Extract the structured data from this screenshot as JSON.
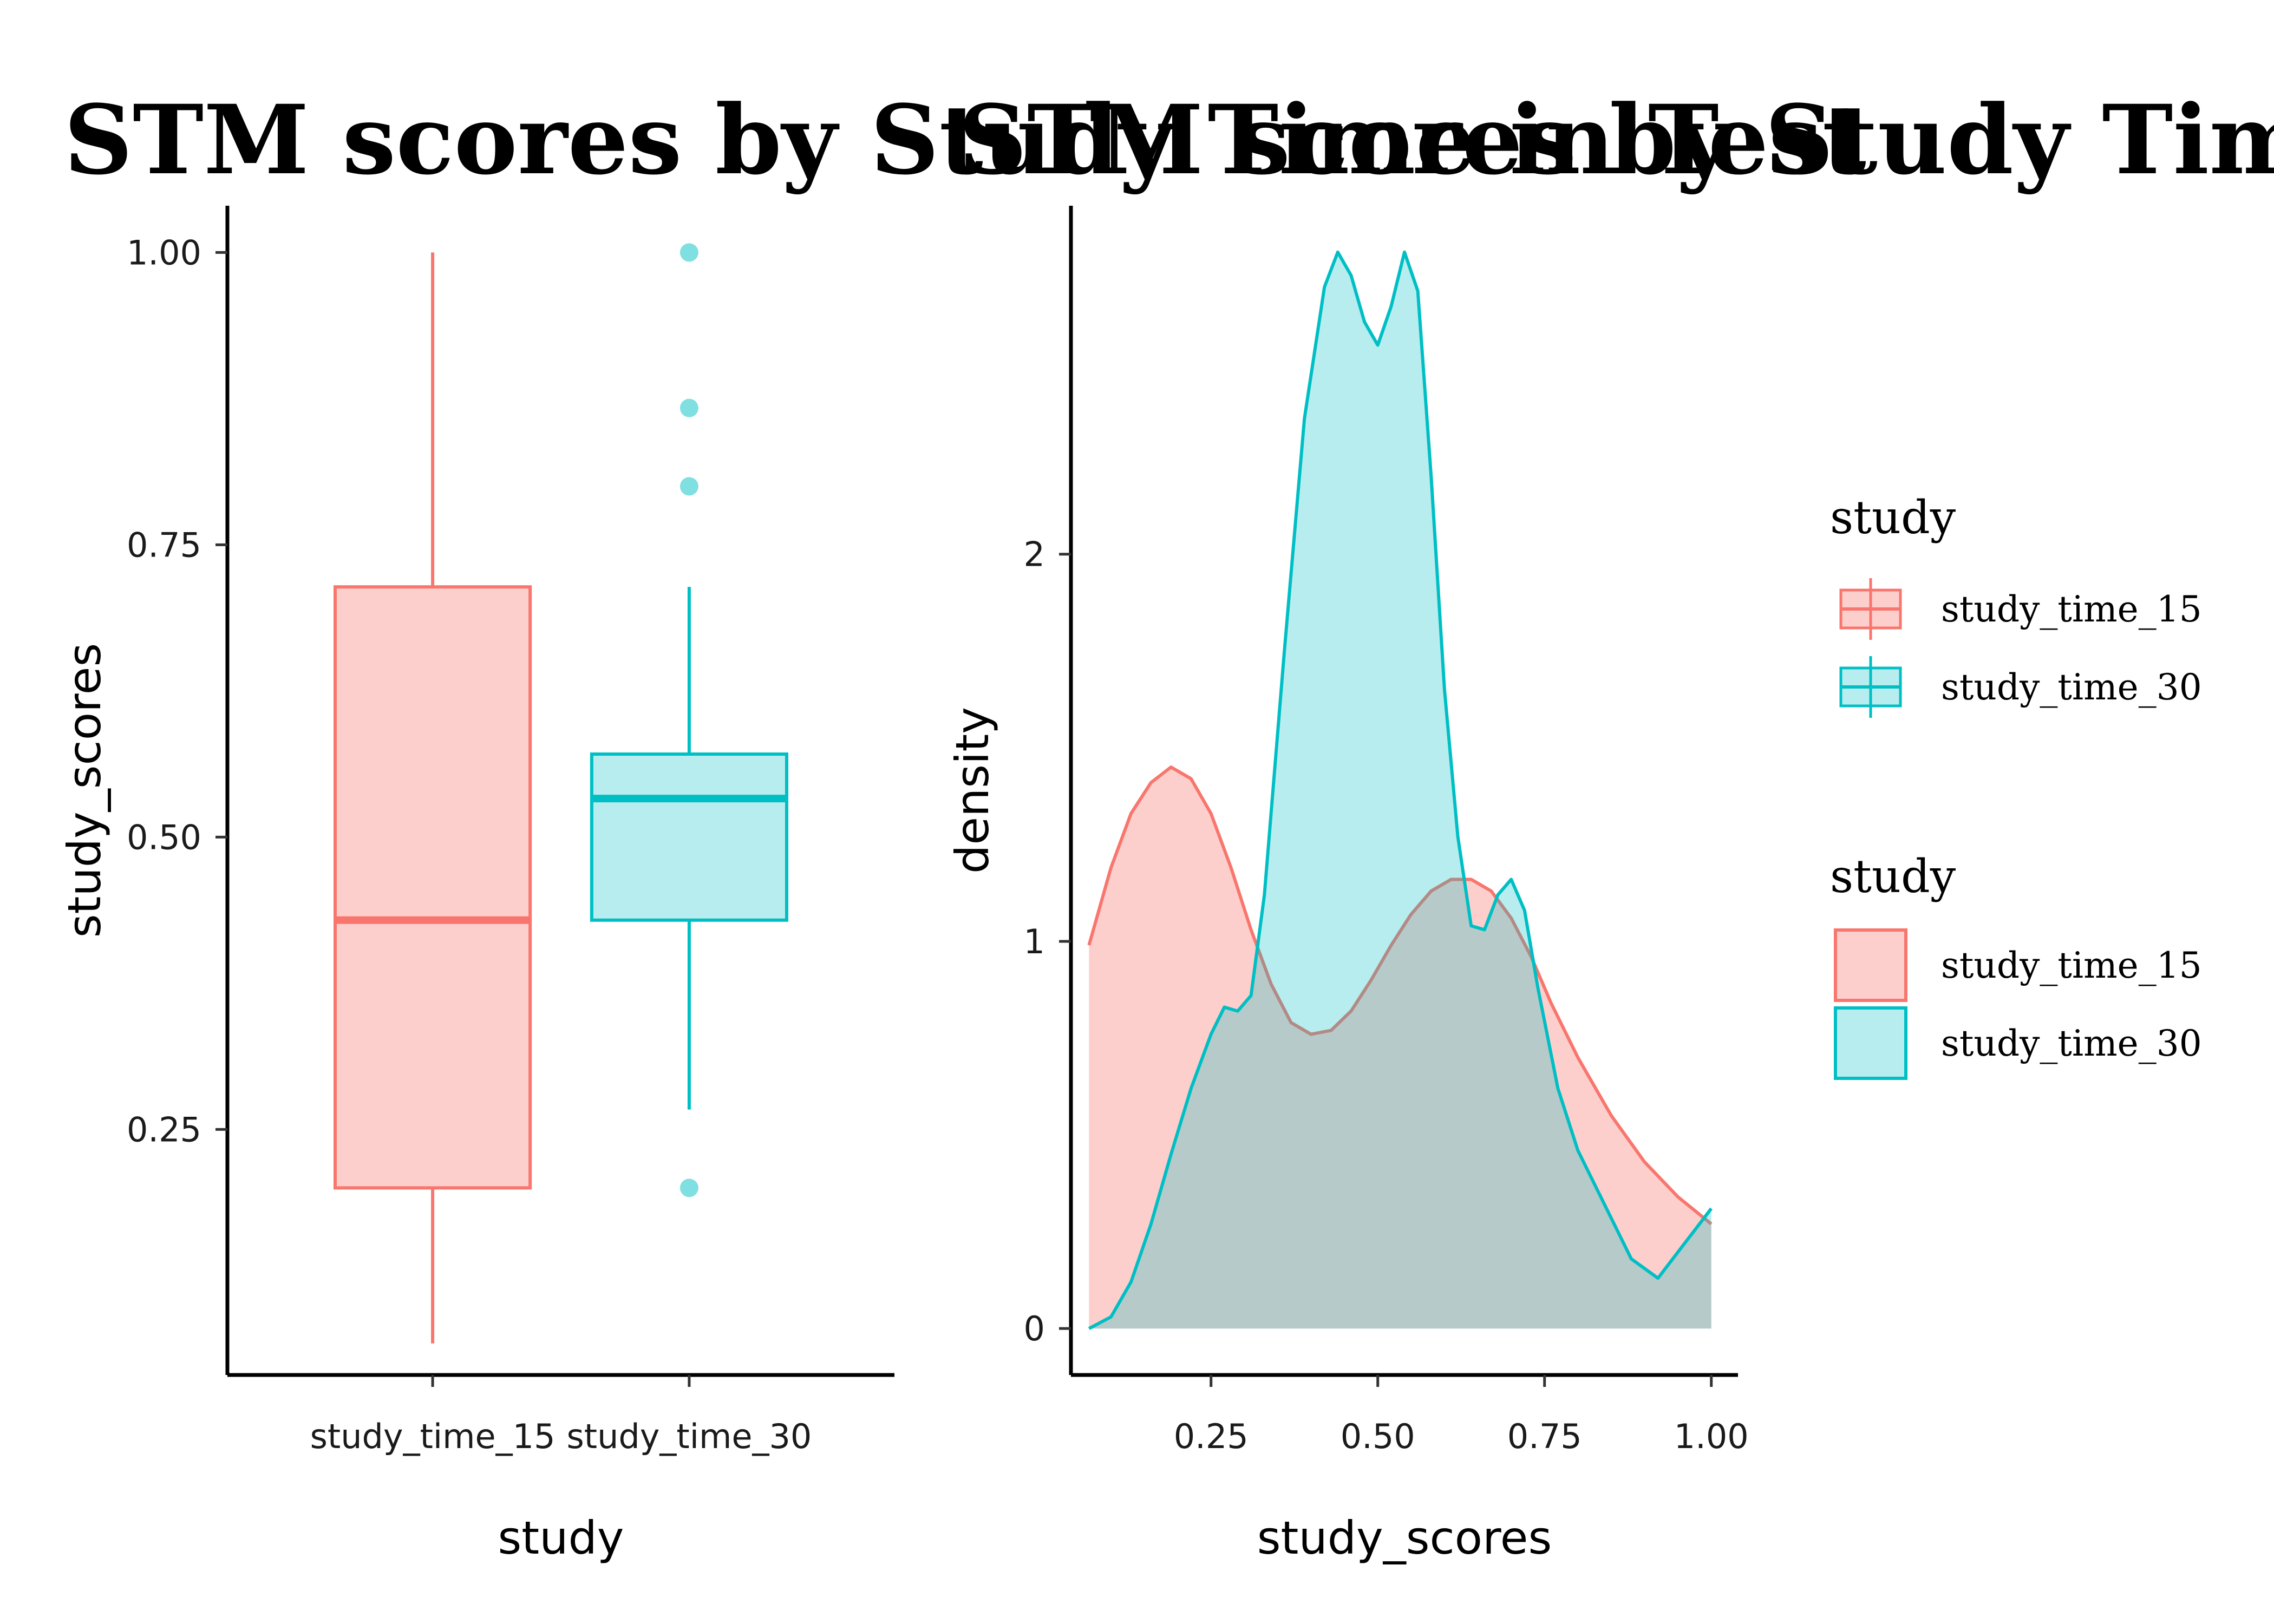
{
  "colors": {
    "study_time_15": "#F8766D",
    "study_time_30": "#00BFC4"
  },
  "chart_data": [
    {
      "type": "box",
      "title": "STM scores by Study Time in Test",
      "xlabel": "study",
      "ylabel": "study_scores",
      "categories": [
        "study_time_15",
        "study_time_30"
      ],
      "ylim": [
        0.04,
        1.04
      ],
      "yticks": [
        0.25,
        0.5,
        0.75,
        1.0
      ],
      "ytick_labels": [
        "0.25",
        "0.50",
        "0.75",
        "1.00"
      ],
      "boxes": [
        {
          "name": "study_time_15",
          "min": 0.067,
          "q1": 0.2,
          "median": 0.429,
          "q3": 0.714,
          "max": 1.0,
          "outliers": []
        },
        {
          "name": "study_time_30",
          "min": 0.267,
          "q1": 0.429,
          "median": 0.533,
          "q3": 0.571,
          "max": 0.714,
          "outliers": [
            1.0,
            0.867,
            0.8,
            0.2
          ]
        }
      ]
    },
    {
      "type": "area",
      "title": "STM scores by Study Time in Test",
      "xlabel": "study_scores",
      "ylabel": "density",
      "xlim": [
        0.04,
        1.04
      ],
      "ylim": [
        -0.12,
        2.9
      ],
      "xticks": [
        0.25,
        0.5,
        0.75,
        1.0
      ],
      "xtick_labels": [
        "0.25",
        "0.50",
        "0.75",
        "1.00"
      ],
      "yticks": [
        0,
        1,
        2
      ],
      "ytick_labels": [
        "0",
        "1",
        "2"
      ],
      "series": [
        {
          "name": "study_time_15",
          "x": [
            0.067,
            0.1,
            0.13,
            0.16,
            0.19,
            0.22,
            0.25,
            0.28,
            0.31,
            0.34,
            0.37,
            0.4,
            0.43,
            0.46,
            0.49,
            0.52,
            0.55,
            0.58,
            0.61,
            0.64,
            0.67,
            0.7,
            0.73,
            0.76,
            0.8,
            0.85,
            0.9,
            0.95,
            1.0
          ],
          "y": [
            0.99,
            1.19,
            1.33,
            1.41,
            1.45,
            1.42,
            1.33,
            1.19,
            1.03,
            0.89,
            0.79,
            0.76,
            0.77,
            0.82,
            0.9,
            0.99,
            1.07,
            1.13,
            1.16,
            1.16,
            1.13,
            1.06,
            0.96,
            0.84,
            0.7,
            0.55,
            0.43,
            0.34,
            0.27
          ]
        },
        {
          "name": "study_time_30",
          "x": [
            0.067,
            0.1,
            0.13,
            0.16,
            0.19,
            0.22,
            0.25,
            0.27,
            0.29,
            0.31,
            0.33,
            0.36,
            0.39,
            0.42,
            0.44,
            0.46,
            0.48,
            0.5,
            0.52,
            0.54,
            0.56,
            0.58,
            0.6,
            0.62,
            0.64,
            0.66,
            0.68,
            0.7,
            0.72,
            0.74,
            0.77,
            0.8,
            0.84,
            0.88,
            0.92,
            0.96,
            1.0
          ],
          "y": [
            0.0,
            0.03,
            0.12,
            0.27,
            0.45,
            0.62,
            0.76,
            0.83,
            0.82,
            0.86,
            1.12,
            1.75,
            2.35,
            2.69,
            2.78,
            2.72,
            2.6,
            2.54,
            2.64,
            2.78,
            2.68,
            2.2,
            1.65,
            1.27,
            1.04,
            1.03,
            1.12,
            1.16,
            1.08,
            0.88,
            0.62,
            0.46,
            0.32,
            0.18,
            0.13,
            0.22,
            0.31
          ]
        }
      ],
      "legends": [
        {
          "title": "study",
          "entries": [
            "study_time_15",
            "study_time_30"
          ]
        },
        {
          "title": "study",
          "entries": [
            "study_time_15",
            "study_time_30"
          ]
        }
      ]
    }
  ]
}
